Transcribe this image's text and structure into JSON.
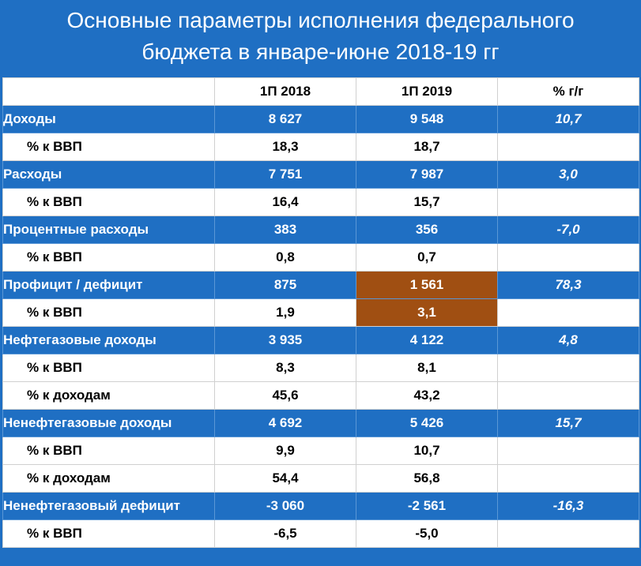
{
  "title": {
    "line1": "Основные параметры исполнения федерального",
    "line2": "бюджета в январе-июне 2018-19 гг"
  },
  "colors": {
    "blue": "#1f6fc3",
    "highlight": "#a04f12"
  },
  "table": {
    "headers": [
      "",
      "1П 2018",
      "1П 2019",
      "% г/г"
    ],
    "rows": [
      {
        "label": "Доходы",
        "v2018": "8 627",
        "v2019": "9 548",
        "yoy": "10,7"
      },
      {
        "label": "% к ВВП",
        "v2018": "18,3",
        "v2019": "18,7",
        "yoy": ""
      },
      {
        "label": "Расходы",
        "v2018": "7 751",
        "v2019": "7 987",
        "yoy": "3,0"
      },
      {
        "label": "% к ВВП",
        "v2018": "16,4",
        "v2019": "15,7",
        "yoy": ""
      },
      {
        "label": "Процентные расходы",
        "v2018": "383",
        "v2019": "356",
        "yoy": "-7,0"
      },
      {
        "label": "% к ВВП",
        "v2018": "0,8",
        "v2019": "0,7",
        "yoy": ""
      },
      {
        "label": "Профицит / дефицит",
        "v2018": "875",
        "v2019": "1 561",
        "yoy": "78,3"
      },
      {
        "label": "% к ВВП",
        "v2018": "1,9",
        "v2019": "3,1",
        "yoy": ""
      },
      {
        "label": "Нефтегазовые доходы",
        "v2018": "3 935",
        "v2019": "4 122",
        "yoy": "4,8"
      },
      {
        "label": "% к ВВП",
        "v2018": "8,3",
        "v2019": "8,1",
        "yoy": ""
      },
      {
        "label": "% к доходам",
        "v2018": "45,6",
        "v2019": "43,2",
        "yoy": ""
      },
      {
        "label": "Ненефтегазовые доходы",
        "v2018": "4 692",
        "v2019": "5 426",
        "yoy": "15,7"
      },
      {
        "label": "% к ВВП",
        "v2018": "9,9",
        "v2019": "10,7",
        "yoy": ""
      },
      {
        "label": "% к доходам",
        "v2018": "54,4",
        "v2019": "56,8",
        "yoy": ""
      },
      {
        "label": "Ненефтегазовый дефицит",
        "v2018": "-3 060",
        "v2019": "-2 561",
        "yoy": "-16,3"
      },
      {
        "label": "% к ВВП",
        "v2018": "-6,5",
        "v2019": "-5,0",
        "yoy": ""
      }
    ]
  }
}
